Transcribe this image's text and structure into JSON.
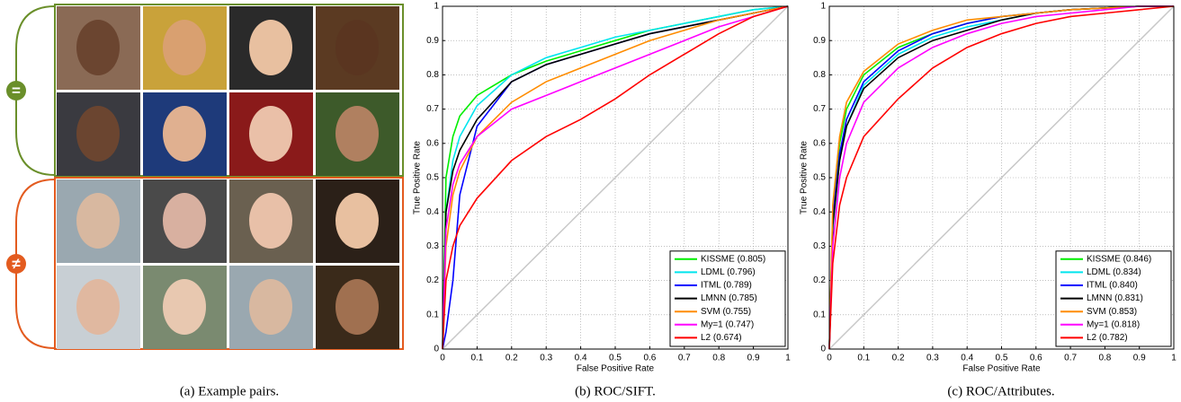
{
  "figure": {
    "captions": [
      "(a) Example pairs.",
      "(b) ROC/SIFT.",
      "(c) ROC/Attributes."
    ],
    "pair_symbols": [
      "=",
      "≠"
    ]
  },
  "chart_data": [
    {
      "type": "line",
      "xlabel": "False Positive Rate",
      "ylabel": "True Positive Rate",
      "x": [
        0,
        0.01,
        0.03,
        0.05,
        0.1,
        0.2,
        0.3,
        0.4,
        0.5,
        0.6,
        0.7,
        0.8,
        0.9,
        1
      ],
      "xlim": [
        0,
        1
      ],
      "ylim": [
        0,
        1
      ],
      "xticks": [
        0,
        0.1,
        0.2,
        0.3,
        0.4,
        0.5,
        0.6,
        0.7,
        0.8,
        0.9,
        1
      ],
      "yticks": [
        0,
        0.1,
        0.2,
        0.3,
        0.4,
        0.5,
        0.6,
        0.7,
        0.8,
        0.9,
        1
      ],
      "grid": true,
      "legend": "lower right",
      "series": [
        {
          "name": "KISSME (0.805)",
          "color": "#00ee00",
          "values": [
            0,
            0.5,
            0.62,
            0.68,
            0.74,
            0.8,
            0.84,
            0.87,
            0.9,
            0.93,
            0.95,
            0.97,
            0.99,
            1
          ]
        },
        {
          "name": "LDML (0.796)",
          "color": "#00e5ee",
          "values": [
            0,
            0.4,
            0.55,
            0.62,
            0.71,
            0.8,
            0.85,
            0.88,
            0.91,
            0.93,
            0.95,
            0.97,
            0.99,
            1
          ]
        },
        {
          "name": "ITML (0.789)",
          "color": "#0000ff",
          "values": [
            0,
            0.05,
            0.2,
            0.45,
            0.65,
            0.78,
            0.83,
            0.86,
            0.89,
            0.92,
            0.94,
            0.96,
            0.98,
            1
          ]
        },
        {
          "name": "LMNN (0.785)",
          "color": "#000000",
          "values": [
            0,
            0.4,
            0.52,
            0.58,
            0.67,
            0.78,
            0.83,
            0.86,
            0.89,
            0.92,
            0.94,
            0.96,
            0.98,
            1
          ]
        },
        {
          "name": "SVM (0.755)",
          "color": "#ff8c00",
          "values": [
            0,
            0.3,
            0.45,
            0.52,
            0.62,
            0.72,
            0.78,
            0.82,
            0.86,
            0.9,
            0.93,
            0.96,
            0.98,
            1
          ]
        },
        {
          "name": "My=1 (0.747)",
          "color": "#ff00ff",
          "values": [
            0,
            0.35,
            0.48,
            0.54,
            0.62,
            0.7,
            0.74,
            0.78,
            0.82,
            0.86,
            0.9,
            0.94,
            0.97,
            1
          ]
        },
        {
          "name": "L2 (0.674)",
          "color": "#ff0000",
          "values": [
            0,
            0.2,
            0.3,
            0.36,
            0.44,
            0.55,
            0.62,
            0.67,
            0.73,
            0.8,
            0.86,
            0.92,
            0.97,
            1
          ]
        }
      ]
    },
    {
      "type": "line",
      "xlabel": "False Positive Rate",
      "ylabel": "True Positive Rate",
      "x": [
        0,
        0.01,
        0.03,
        0.05,
        0.1,
        0.2,
        0.3,
        0.4,
        0.5,
        0.6,
        0.7,
        0.8,
        0.9,
        1
      ],
      "xlim": [
        0,
        1
      ],
      "ylim": [
        0,
        1
      ],
      "xticks": [
        0,
        0.1,
        0.2,
        0.3,
        0.4,
        0.5,
        0.6,
        0.7,
        0.8,
        0.9,
        1
      ],
      "yticks": [
        0,
        0.1,
        0.2,
        0.3,
        0.4,
        0.5,
        0.6,
        0.7,
        0.8,
        0.9,
        1
      ],
      "grid": true,
      "legend": "lower right",
      "series": [
        {
          "name": "KISSME (0.846)",
          "color": "#00ee00",
          "values": [
            0,
            0.4,
            0.6,
            0.7,
            0.8,
            0.88,
            0.92,
            0.95,
            0.97,
            0.98,
            0.99,
            0.995,
            1,
            1
          ]
        },
        {
          "name": "LDML (0.834)",
          "color": "#00e5ee",
          "values": [
            0,
            0.35,
            0.55,
            0.65,
            0.77,
            0.86,
            0.91,
            0.94,
            0.96,
            0.98,
            0.99,
            0.995,
            1,
            1
          ]
        },
        {
          "name": "ITML (0.840)",
          "color": "#0000ff",
          "values": [
            0,
            0.38,
            0.57,
            0.67,
            0.78,
            0.87,
            0.92,
            0.95,
            0.97,
            0.98,
            0.99,
            0.995,
            1,
            1
          ]
        },
        {
          "name": "LMNN (0.831)",
          "color": "#000000",
          "values": [
            0,
            0.36,
            0.55,
            0.65,
            0.76,
            0.85,
            0.9,
            0.93,
            0.96,
            0.98,
            0.99,
            0.995,
            1,
            1
          ]
        },
        {
          "name": "SVM (0.853)",
          "color": "#ff8c00",
          "values": [
            0,
            0.42,
            0.62,
            0.72,
            0.81,
            0.89,
            0.93,
            0.96,
            0.97,
            0.98,
            0.99,
            0.995,
            1,
            1
          ]
        },
        {
          "name": "My=1 (0.818)",
          "color": "#ff00ff",
          "values": [
            0,
            0.3,
            0.5,
            0.6,
            0.72,
            0.82,
            0.88,
            0.92,
            0.95,
            0.97,
            0.98,
            0.99,
            1,
            1
          ]
        },
        {
          "name": "L2 (0.782)",
          "color": "#ff0000",
          "values": [
            0,
            0.25,
            0.42,
            0.5,
            0.62,
            0.73,
            0.82,
            0.88,
            0.92,
            0.95,
            0.97,
            0.98,
            0.99,
            1
          ]
        }
      ]
    }
  ]
}
